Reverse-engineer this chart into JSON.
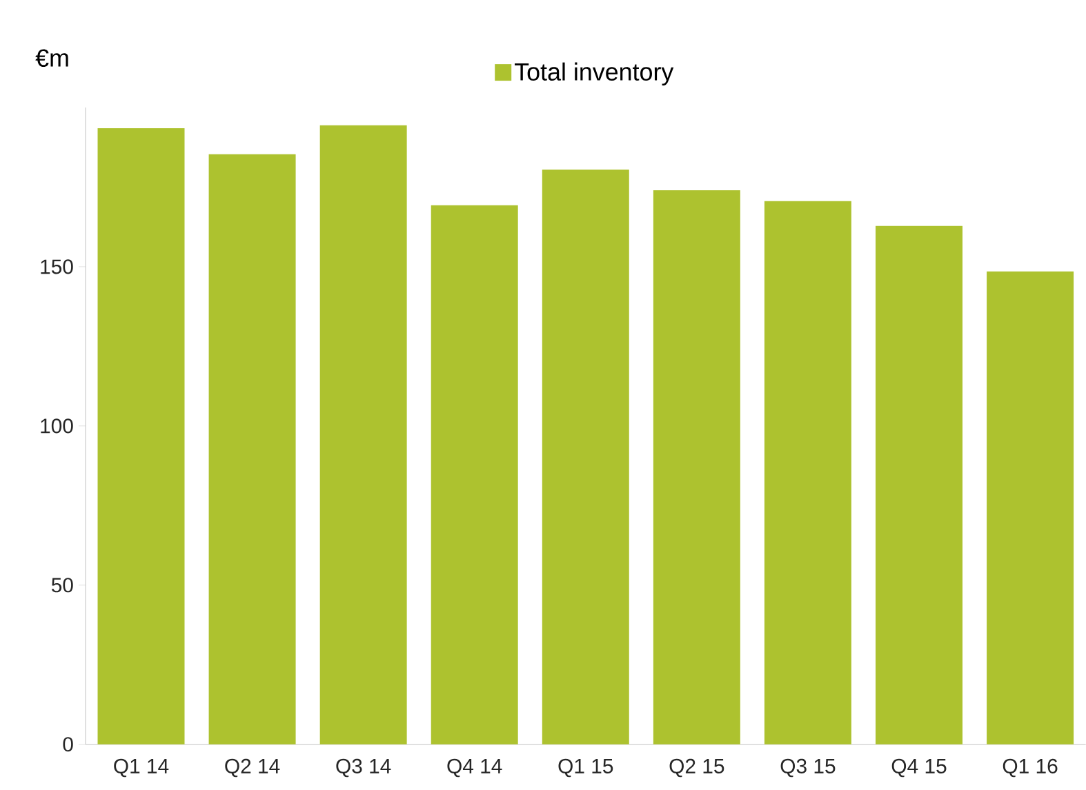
{
  "chart_data": {
    "type": "bar",
    "ylabel": "€m",
    "categories": [
      "Q1 14",
      "Q2 14",
      "Q3 14",
      "Q4 14",
      "Q1 15",
      "Q2 15",
      "Q3 15",
      "Q4 15",
      "Q1 16"
    ],
    "series": [
      {
        "name": "Total inventory",
        "color": "#adc22f",
        "values": [
          193.5,
          185.3,
          194.4,
          169.3,
          180.5,
          174,
          170.6,
          162.8,
          148.5
        ]
      }
    ],
    "ylim": [
      0,
      200
    ],
    "yticks": [
      0,
      50,
      100,
      150
    ],
    "grid": false,
    "legend": "top"
  }
}
